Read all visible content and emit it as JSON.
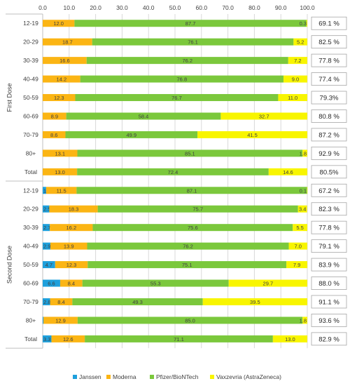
{
  "chart_data": {
    "type": "bar",
    "orientation": "horizontal",
    "stacked": true,
    "xlim": [
      0,
      100
    ],
    "x_ticks": [
      "0.0",
      "10.0",
      "20.0",
      "30.0",
      "40.0",
      "50.0",
      "60.0",
      "70.0",
      "80.0",
      "90.0",
      "100.0"
    ],
    "grid": true,
    "legend_position": "bottom",
    "series": [
      {
        "name": "Janssen",
        "color": "#1ea0dc"
      },
      {
        "name": "Moderna",
        "color": "#fbb514"
      },
      {
        "name": "Pfizer/BioNTech",
        "color": "#7bc83c"
      },
      {
        "name": "Vaxzevria (AstraZeneca)",
        "color": "#f8f500"
      }
    ],
    "groups": [
      {
        "name": "First Dose",
        "rows": [
          {
            "category": "12-19",
            "values": [
              0,
              12.0,
              87.7,
              0.3
            ],
            "labels": [
              "",
              "12.0",
              "87.7",
              "0.3"
            ],
            "total": "69.1 %"
          },
          {
            "category": "20-29",
            "values": [
              0,
              18.7,
              76.1,
              5.2
            ],
            "labels": [
              "",
              "18.7",
              "76.1",
              "5.2"
            ],
            "total": "82.5 %"
          },
          {
            "category": "30-39",
            "values": [
              0,
              16.6,
              76.2,
              7.2
            ],
            "labels": [
              "",
              "16.6",
              "76.2",
              "7.2"
            ],
            "total": "77.8 %"
          },
          {
            "category": "40-49",
            "values": [
              0,
              14.2,
              76.8,
              9.0
            ],
            "labels": [
              "",
              "14.2",
              "76.8",
              "9.0"
            ],
            "total": "77.4 %"
          },
          {
            "category": "50-59",
            "values": [
              0,
              12.3,
              76.7,
              11.0
            ],
            "labels": [
              "",
              "12.3",
              "76.7",
              "11.0"
            ],
            "total": "79.3%"
          },
          {
            "category": "60-69",
            "values": [
              0,
              8.9,
              58.4,
              32.7
            ],
            "labels": [
              "",
              "8.9",
              "58.4",
              "32.7"
            ],
            "total": "80.8 %"
          },
          {
            "category": "70-79",
            "values": [
              0,
              8.6,
              49.9,
              41.5
            ],
            "labels": [
              "",
              "8.6",
              "49.9",
              "41.5"
            ],
            "total": "87.2 %"
          },
          {
            "category": "80+",
            "values": [
              0,
              13.1,
              85.1,
              1.8
            ],
            "labels": [
              "",
              "13.1",
              "85.1",
              "1.8"
            ],
            "total": "92.9 %"
          },
          {
            "category": "Total",
            "values": [
              0,
              13.0,
              72.4,
              14.6
            ],
            "labels": [
              "",
              "13.0",
              "72.4",
              "14.6"
            ],
            "total": "80.5%"
          }
        ]
      },
      {
        "name": "Second Dose",
        "rows": [
          {
            "category": "12-19",
            "values": [
              1.3,
              11.5,
              87.1,
              0.1
            ],
            "labels": [
              "1.3",
              "11.5",
              "87.1",
              "0.1"
            ],
            "total": "67.2 %"
          },
          {
            "category": "20-29",
            "values": [
              2.5,
              18.3,
              75.7,
              3.4
            ],
            "labels": [
              "2.5",
              "18.3",
              "75.7",
              "3.4"
            ],
            "total": "82.3 %"
          },
          {
            "category": "30-39",
            "values": [
              2.7,
              16.2,
              75.6,
              5.5
            ],
            "labels": [
              "2.7",
              "16.2",
              "75.6",
              "5.5"
            ],
            "total": "77.8 %"
          },
          {
            "category": "40-49",
            "values": [
              2.9,
              13.9,
              76.2,
              7.0
            ],
            "labels": [
              "2.9",
              "13.9",
              "76.2",
              "7.0"
            ],
            "total": "79.1 %"
          },
          {
            "category": "50-59",
            "values": [
              4.7,
              12.3,
              75.1,
              7.9
            ],
            "labels": [
              "4.7",
              "12.3",
              "75.1",
              "7.9"
            ],
            "total": "83.9 %"
          },
          {
            "category": "60-69",
            "values": [
              6.6,
              8.4,
              55.3,
              29.7
            ],
            "labels": [
              "6.6",
              "8.4",
              "55.3",
              "29.7"
            ],
            "total": "88.0 %"
          },
          {
            "category": "70-79",
            "values": [
              2.8,
              8.4,
              49.3,
              39.5
            ],
            "labels": [
              "2.8",
              "8.4",
              "49.3",
              "39.5"
            ],
            "total": "91.1 %"
          },
          {
            "category": "80+",
            "values": [
              0.3,
              12.9,
              85.0,
              1.8
            ],
            "labels": [
              "0.3",
              "12.9",
              "85.0",
              "1.8"
            ],
            "total": "93.6 %"
          },
          {
            "category": "Total",
            "values": [
              3.3,
              12.6,
              71.1,
              13.0
            ],
            "labels": [
              "3.3",
              "12.6",
              "71.1",
              "13.0"
            ],
            "total": "82.9 %"
          }
        ]
      }
    ]
  }
}
